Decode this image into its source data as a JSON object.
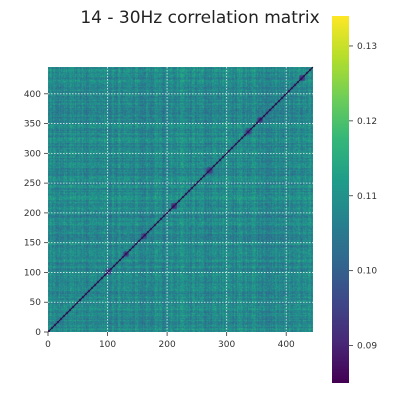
{
  "chart_data": {
    "type": "heatmap",
    "title": "14 - 30Hz correlation matrix",
    "xlabel": "",
    "ylabel": "",
    "matrix_size": 445,
    "xlim": [
      0,
      445
    ],
    "ylim": [
      0,
      445
    ],
    "x_ticks": [
      0,
      100,
      200,
      300,
      400
    ],
    "y_ticks": [
      0,
      50,
      100,
      150,
      200,
      250,
      300,
      350,
      400
    ],
    "grid": true,
    "colormap": "viridis",
    "colorbar": {
      "vmin": 0.085,
      "vmax": 0.134,
      "ticks": [
        0.09,
        0.1,
        0.11,
        0.12,
        0.13
      ],
      "tick_labels": [
        "0.09",
        "0.10",
        "0.11",
        "0.12",
        "0.13"
      ]
    },
    "typical_value": 0.108,
    "diagonal_value": 0.085,
    "diagonal_dark_blocks": [
      {
        "center": 100,
        "value": 0.088
      },
      {
        "center": 130,
        "value": 0.088
      },
      {
        "center": 160,
        "value": 0.089
      },
      {
        "center": 210,
        "value": 0.086
      },
      {
        "center": 270,
        "value": 0.088
      },
      {
        "center": 335,
        "value": 0.089
      },
      {
        "center": 355,
        "value": 0.087
      },
      {
        "center": 425,
        "value": 0.088
      }
    ],
    "colors": {
      "viridis": [
        "#440154",
        "#482878",
        "#3e4989",
        "#31688e",
        "#26828e",
        "#1f9e89",
        "#35b779",
        "#6ece58",
        "#b5de2b",
        "#fde725"
      ]
    }
  }
}
